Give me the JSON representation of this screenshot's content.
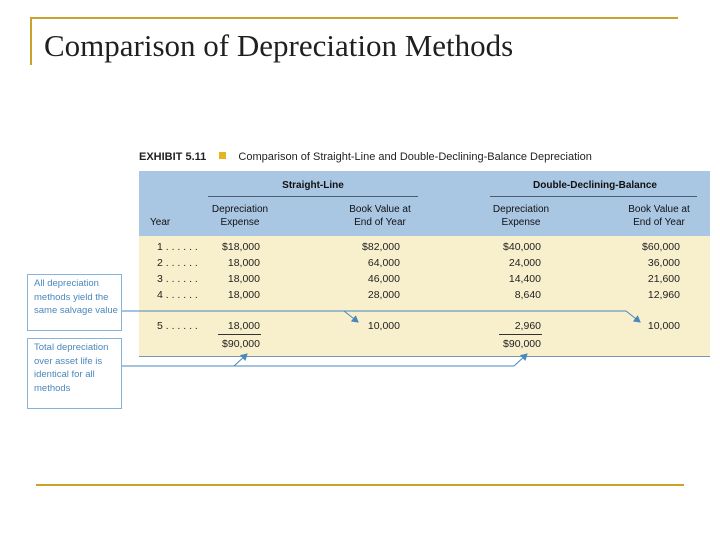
{
  "slide": {
    "title": "Comparison of Depreciation Methods"
  },
  "exhibit": {
    "id": "EXHIBIT 5.11",
    "caption": "Comparison of Straight-Line and Double-Declining-Balance Depreciation",
    "group_headers": [
      "Straight-Line",
      "Double-Declining-Balance"
    ],
    "columns": {
      "year": "Year",
      "sl_expense": [
        "Depreciation",
        "Expense"
      ],
      "sl_book": [
        "Book Value at",
        "End of Year"
      ],
      "ddb_expense": [
        "Depreciation",
        "Expense"
      ],
      "ddb_book": [
        "Book Value at",
        "End of Year"
      ]
    },
    "rows": [
      {
        "year": "1 . . . . . .",
        "sl_expense": "$18,000",
        "sl_book": "$82,000",
        "ddb_expense": "$40,000",
        "ddb_book": "$60,000"
      },
      {
        "year": "2 . . . . . .",
        "sl_expense": "18,000",
        "sl_book": "64,000",
        "ddb_expense": "24,000",
        "ddb_book": "36,000"
      },
      {
        "year": "3 . . . . . .",
        "sl_expense": "18,000",
        "sl_book": "46,000",
        "ddb_expense": "14,400",
        "ddb_book": "21,600"
      },
      {
        "year": "4 . . . . . .",
        "sl_expense": "18,000",
        "sl_book": "28,000",
        "ddb_expense": "8,640",
        "ddb_book": "12,960"
      },
      {
        "year": "5 . . . . . .",
        "sl_expense": "18,000",
        "sl_book": "10,000",
        "ddb_expense": "2,960",
        "ddb_book": "10,000"
      }
    ],
    "totals": {
      "sl_expense": "$90,000",
      "ddb_expense": "$90,000"
    }
  },
  "callouts": {
    "salvage": "All depreciation methods yield the same salvage value",
    "total": "Total depreciation over asset life is identical for all methods"
  },
  "colors": {
    "accent_rule": "#c8a22a",
    "header_band": "#a9c6e3",
    "body_band": "#f8efcd",
    "callout_blue": "#4a87bd",
    "exhibit_square": "#e8b321"
  }
}
